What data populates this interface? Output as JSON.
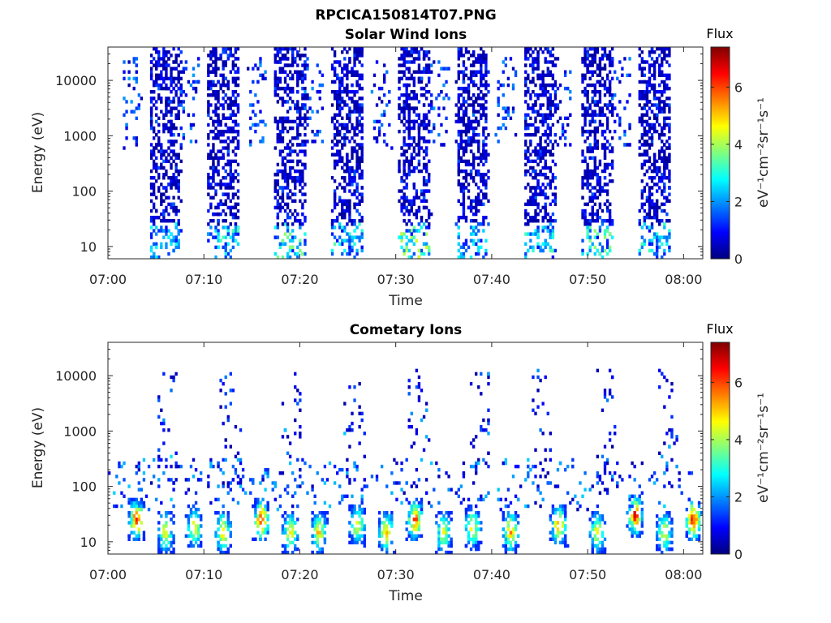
{
  "figure_title": "RPCICA150814T07.PNG",
  "chart_data": [
    {
      "type": "heatmap",
      "title": "Solar Wind Ions",
      "xlabel": "Time",
      "ylabel": "Energy (eV)",
      "x_ticks": [
        "07:00",
        "07:10",
        "07:20",
        "07:30",
        "07:40",
        "07:50",
        "08:00"
      ],
      "x_range": [
        "07:00",
        "08:02"
      ],
      "y_scale": "log",
      "y_ticks": [
        "10",
        "100",
        "1000",
        "10000"
      ],
      "y_range": [
        6,
        40000
      ],
      "colorbar": {
        "title": "Flux",
        "label": "eV⁻¹cm⁻²sr⁻¹s⁻¹",
        "ticks": [
          "0",
          "2",
          "4",
          "6"
        ],
        "range": [
          0,
          7.4
        ],
        "colormap": "jet"
      },
      "scan_bursts": [
        {
          "center": "07:06",
          "peak_flux": 2.0
        },
        {
          "center": "07:12",
          "peak_flux": 2.5
        },
        {
          "center": "07:19",
          "peak_flux": 3.0
        },
        {
          "center": "07:25",
          "peak_flux": 2.5
        },
        {
          "center": "07:32",
          "peak_flux": 3.5
        },
        {
          "center": "07:38",
          "peak_flux": 2.0
        },
        {
          "center": "07:45",
          "peak_flux": 2.5
        },
        {
          "center": "07:51",
          "peak_flux": 3.0
        },
        {
          "center": "07:57",
          "peak_flux": 2.5
        }
      ]
    },
    {
      "type": "heatmap",
      "title": "Cometary Ions",
      "xlabel": "Time",
      "ylabel": "Energy (eV)",
      "x_ticks": [
        "07:00",
        "07:10",
        "07:20",
        "07:30",
        "07:40",
        "07:50",
        "08:00"
      ],
      "x_range": [
        "07:00",
        "08:02"
      ],
      "y_scale": "log",
      "y_ticks": [
        "10",
        "100",
        "1000",
        "10000"
      ],
      "y_range": [
        6,
        40000
      ],
      "colorbar": {
        "title": "Flux",
        "label": "eV⁻¹cm⁻²sr⁻¹s⁻¹",
        "ticks": [
          "0",
          "2",
          "4",
          "6"
        ],
        "range": [
          0,
          7.4
        ],
        "colormap": "jet"
      },
      "hot_spots": [
        {
          "time": "07:03",
          "energy_ev": 25,
          "flux": 6.8
        },
        {
          "time": "07:06",
          "energy_ev": 15,
          "flux": 5.0
        },
        {
          "time": "07:09",
          "energy_ev": 18,
          "flux": 5.0
        },
        {
          "time": "07:12",
          "energy_ev": 15,
          "flux": 5.5
        },
        {
          "time": "07:16",
          "energy_ev": 25,
          "flux": 7.0
        },
        {
          "time": "07:19",
          "energy_ev": 15,
          "flux": 5.0
        },
        {
          "time": "07:22",
          "energy_ev": 15,
          "flux": 5.5
        },
        {
          "time": "07:26",
          "energy_ev": 20,
          "flux": 5.0
        },
        {
          "time": "07:29",
          "energy_ev": 15,
          "flux": 5.5
        },
        {
          "time": "07:32",
          "energy_ev": 25,
          "flux": 6.5
        },
        {
          "time": "07:35",
          "energy_ev": 15,
          "flux": 5.0
        },
        {
          "time": "07:38",
          "energy_ev": 18,
          "flux": 5.5
        },
        {
          "time": "07:42",
          "energy_ev": 15,
          "flux": 6.0
        },
        {
          "time": "07:47",
          "energy_ev": 20,
          "flux": 6.0
        },
        {
          "time": "07:51",
          "energy_ev": 15,
          "flux": 5.0
        },
        {
          "time": "07:55",
          "energy_ev": 30,
          "flux": 7.0
        },
        {
          "time": "07:58",
          "energy_ev": 15,
          "flux": 5.0
        },
        {
          "time": "08:01",
          "energy_ev": 25,
          "flux": 6.8
        }
      ]
    }
  ]
}
